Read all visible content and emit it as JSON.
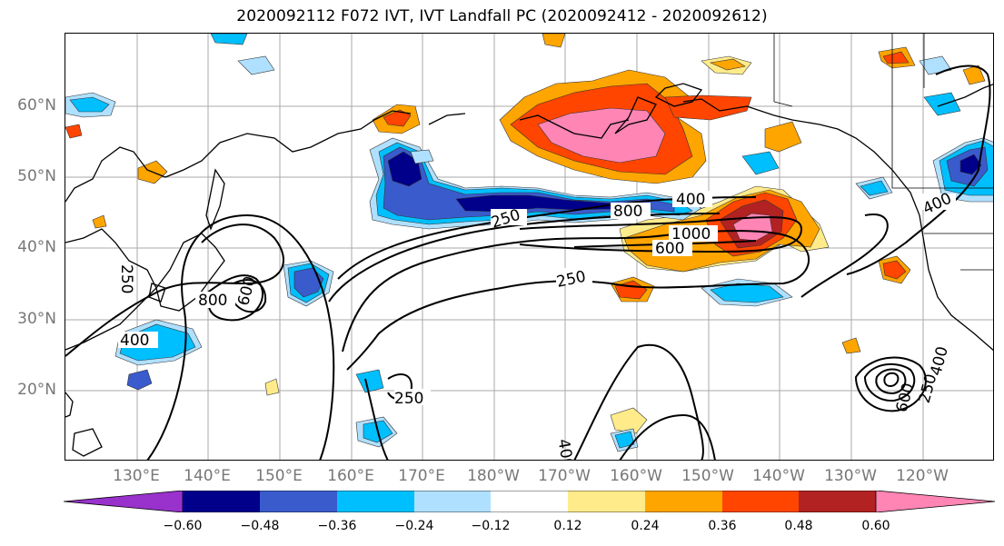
{
  "title": "2020092112 F072 IVT, IVT Landfall PC (2020092412 - 2020092612)",
  "lat_labels": [
    "60°N",
    "50°N",
    "40°N",
    "30°N",
    "20°N"
  ],
  "lon_labels": [
    "130°E",
    "140°E",
    "150°E",
    "160°E",
    "170°E",
    "180°W",
    "170°W",
    "160°W",
    "150°W",
    "140°W",
    "130°W",
    "120°W"
  ],
  "contour_labels": [
    "400",
    "800",
    "1000",
    "600",
    "250",
    "250",
    "400",
    "800",
    "600",
    "250",
    "250",
    "400",
    "400",
    "600",
    "250",
    "400"
  ],
  "colorbar": {
    "colors": [
      "#9932cc",
      "#00008b",
      "#3a5bcc",
      "#00bfff",
      "#b0e0ff",
      "#ffffff",
      "#ffeb8a",
      "#ffa500",
      "#ff4500",
      "#b22222",
      "#ff85b4"
    ],
    "tick_labels": [
      "−0.60",
      "−0.48",
      "−0.36",
      "−0.24",
      "−0.12",
      "0.12",
      "0.24",
      "0.36",
      "0.48",
      "0.60"
    ]
  }
}
